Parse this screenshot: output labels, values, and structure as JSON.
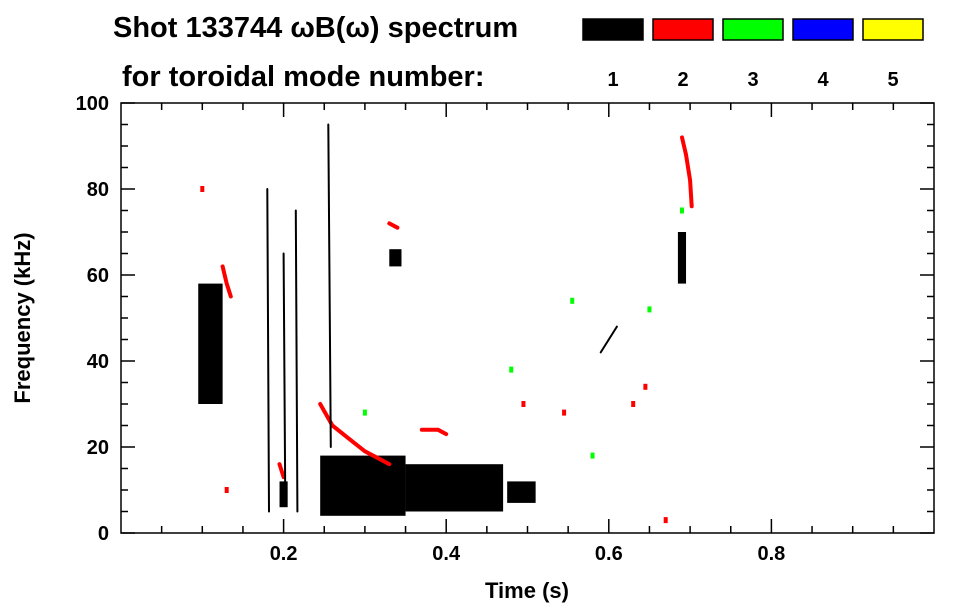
{
  "title_line1": "Shot 133744 ωB(ω) spectrum",
  "title_line2": "for toroidal mode number:",
  "legend": [
    {
      "label": "1",
      "color": "#000000"
    },
    {
      "label": "2",
      "color": "#ff0000"
    },
    {
      "label": "3",
      "color": "#00ff00"
    },
    {
      "label": "4",
      "color": "#0000ff"
    },
    {
      "label": "5",
      "color": "#ffff00"
    }
  ],
  "chart_data": {
    "type": "heatmap",
    "xlabel": "Time (s)",
    "ylabel": "Frequency (kHz)",
    "xlim": [
      0.0,
      1.0
    ],
    "ylim": [
      0,
      100
    ],
    "x_ticks": [
      0.2,
      0.4,
      0.6,
      0.8
    ],
    "x_tick_labels": [
      "0.2",
      "0.4",
      "0.6",
      "0.8"
    ],
    "y_ticks": [
      0,
      20,
      40,
      60,
      80,
      100
    ],
    "y_tick_labels": [
      "0",
      "20",
      "40",
      "60",
      "80",
      "100"
    ],
    "grid": false,
    "regions": [
      {
        "n": 1,
        "color": "#000000",
        "t": [
          0.095,
          0.125
        ],
        "f": [
          30,
          58
        ]
      },
      {
        "n": 1,
        "color": "#000000",
        "t": [
          0.1,
          0.12
        ],
        "f": [
          40,
          55
        ]
      },
      {
        "n": 1,
        "color": "#000000",
        "t": [
          0.245,
          0.35
        ],
        "f": [
          4,
          18
        ]
      },
      {
        "n": 1,
        "color": "#000000",
        "t": [
          0.35,
          0.47
        ],
        "f": [
          5,
          16
        ]
      },
      {
        "n": 1,
        "color": "#000000",
        "t": [
          0.475,
          0.51
        ],
        "f": [
          7,
          12
        ]
      },
      {
        "n": 1,
        "color": "#000000",
        "t": [
          0.33,
          0.345
        ],
        "f": [
          62,
          66
        ]
      },
      {
        "n": 1,
        "color": "#000000",
        "t": [
          0.685,
          0.695
        ],
        "f": [
          58,
          70
        ]
      },
      {
        "n": 1,
        "color": "#000000",
        "t": [
          0.195,
          0.205
        ],
        "f": [
          6,
          12
        ]
      }
    ],
    "lines": [
      {
        "n": 2,
        "color": "#ff0000",
        "t": [
          0.245,
          0.26,
          0.28,
          0.3,
          0.32,
          0.33
        ],
        "f": [
          30,
          25,
          22,
          19,
          17,
          16
        ]
      },
      {
        "n": 2,
        "color": "#ff0000",
        "t": [
          0.37,
          0.38,
          0.39,
          0.4
        ],
        "f": [
          24,
          24,
          24,
          23
        ]
      },
      {
        "n": 2,
        "color": "#ff0000",
        "t": [
          0.69,
          0.695,
          0.7,
          0.702
        ],
        "f": [
          92,
          88,
          82,
          76
        ]
      },
      {
        "n": 2,
        "color": "#ff0000",
        "t": [
          0.125,
          0.13,
          0.135
        ],
        "f": [
          62,
          58,
          55
        ]
      },
      {
        "n": 2,
        "color": "#ff0000",
        "t": [
          0.195,
          0.2
        ],
        "f": [
          16,
          13
        ]
      },
      {
        "n": 2,
        "color": "#ff0000",
        "t": [
          0.33,
          0.34
        ],
        "f": [
          72,
          71
        ]
      },
      {
        "n": 1,
        "color": "#000000",
        "t": [
          0.59,
          0.61
        ],
        "f": [
          42,
          48
        ]
      },
      {
        "n": 1,
        "color": "#000000",
        "t": [
          0.255,
          0.258
        ],
        "f": [
          95,
          20
        ]
      },
      {
        "n": 1,
        "color": "#000000",
        "t": [
          0.2,
          0.202
        ],
        "f": [
          65,
          10
        ]
      },
      {
        "n": 1,
        "color": "#000000",
        "t": [
          0.215,
          0.217
        ],
        "f": [
          75,
          5
        ]
      },
      {
        "n": 1,
        "color": "#000000",
        "t": [
          0.18,
          0.182
        ],
        "f": [
          80,
          5
        ]
      }
    ],
    "points": [
      {
        "n": 3,
        "color": "#00ff00",
        "t": 0.69,
        "f": 75
      },
      {
        "n": 3,
        "color": "#00ff00",
        "t": 0.58,
        "f": 18
      },
      {
        "n": 3,
        "color": "#00ff00",
        "t": 0.3,
        "f": 28
      },
      {
        "n": 3,
        "color": "#00ff00",
        "t": 0.555,
        "f": 54
      },
      {
        "n": 3,
        "color": "#00ff00",
        "t": 0.65,
        "f": 52
      },
      {
        "n": 3,
        "color": "#00ff00",
        "t": 0.48,
        "f": 38
      },
      {
        "n": 2,
        "color": "#ff0000",
        "t": 0.1,
        "f": 80
      },
      {
        "n": 2,
        "color": "#ff0000",
        "t": 0.13,
        "f": 10
      },
      {
        "n": 2,
        "color": "#ff0000",
        "t": 0.495,
        "f": 30
      },
      {
        "n": 2,
        "color": "#ff0000",
        "t": 0.545,
        "f": 28
      },
      {
        "n": 2,
        "color": "#ff0000",
        "t": 0.63,
        "f": 30
      },
      {
        "n": 2,
        "color": "#ff0000",
        "t": 0.645,
        "f": 34
      },
      {
        "n": 2,
        "color": "#ff0000",
        "t": 0.67,
        "f": 3
      }
    ]
  }
}
